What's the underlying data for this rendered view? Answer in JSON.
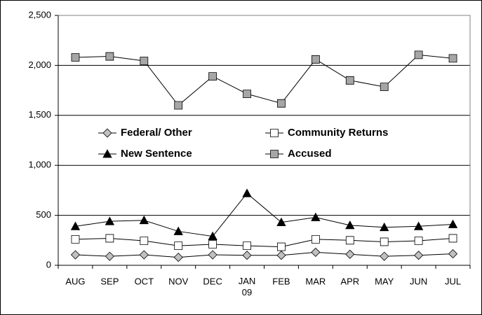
{
  "chart_data": {
    "type": "line",
    "categories": [
      "AUG",
      "SEP",
      "OCT",
      "NOV",
      "DEC",
      "JAN 09",
      "FEB",
      "MAR",
      "APR",
      "MAY",
      "JUN",
      "JUL"
    ],
    "series": [
      {
        "name": "Federal/ Other",
        "color": "#c0c0c0",
        "marker": "diamond",
        "values": [
          105,
          90,
          105,
          80,
          105,
          100,
          100,
          130,
          110,
          90,
          100,
          115
        ]
      },
      {
        "name": "Community Returns",
        "color": "#ffffff",
        "marker": "square",
        "values": [
          260,
          270,
          245,
          195,
          210,
          195,
          185,
          260,
          250,
          235,
          245,
          270
        ]
      },
      {
        "name": "New Sentence",
        "color": "#000000",
        "marker": "triangle",
        "values": [
          390,
          440,
          450,
          340,
          290,
          720,
          430,
          480,
          400,
          380,
          390,
          410
        ]
      },
      {
        "name": "Accused",
        "color": "#a6a6a6",
        "marker": "square",
        "values": [
          2080,
          2090,
          2045,
          1600,
          1890,
          1715,
          1620,
          2060,
          1850,
          1785,
          2105,
          2070
        ]
      }
    ],
    "ylim": [
      0,
      2500
    ],
    "yticks": [
      0,
      {
        "value": 500,
        "label": "500"
      },
      {
        "value": 1000,
        "label": "1,000"
      },
      {
        "value": 1500,
        "label": "1,500"
      },
      {
        "value": 2000,
        "label": "2,000"
      },
      {
        "value": 2500,
        "label": "2,500"
      }
    ],
    "grid": true
  }
}
